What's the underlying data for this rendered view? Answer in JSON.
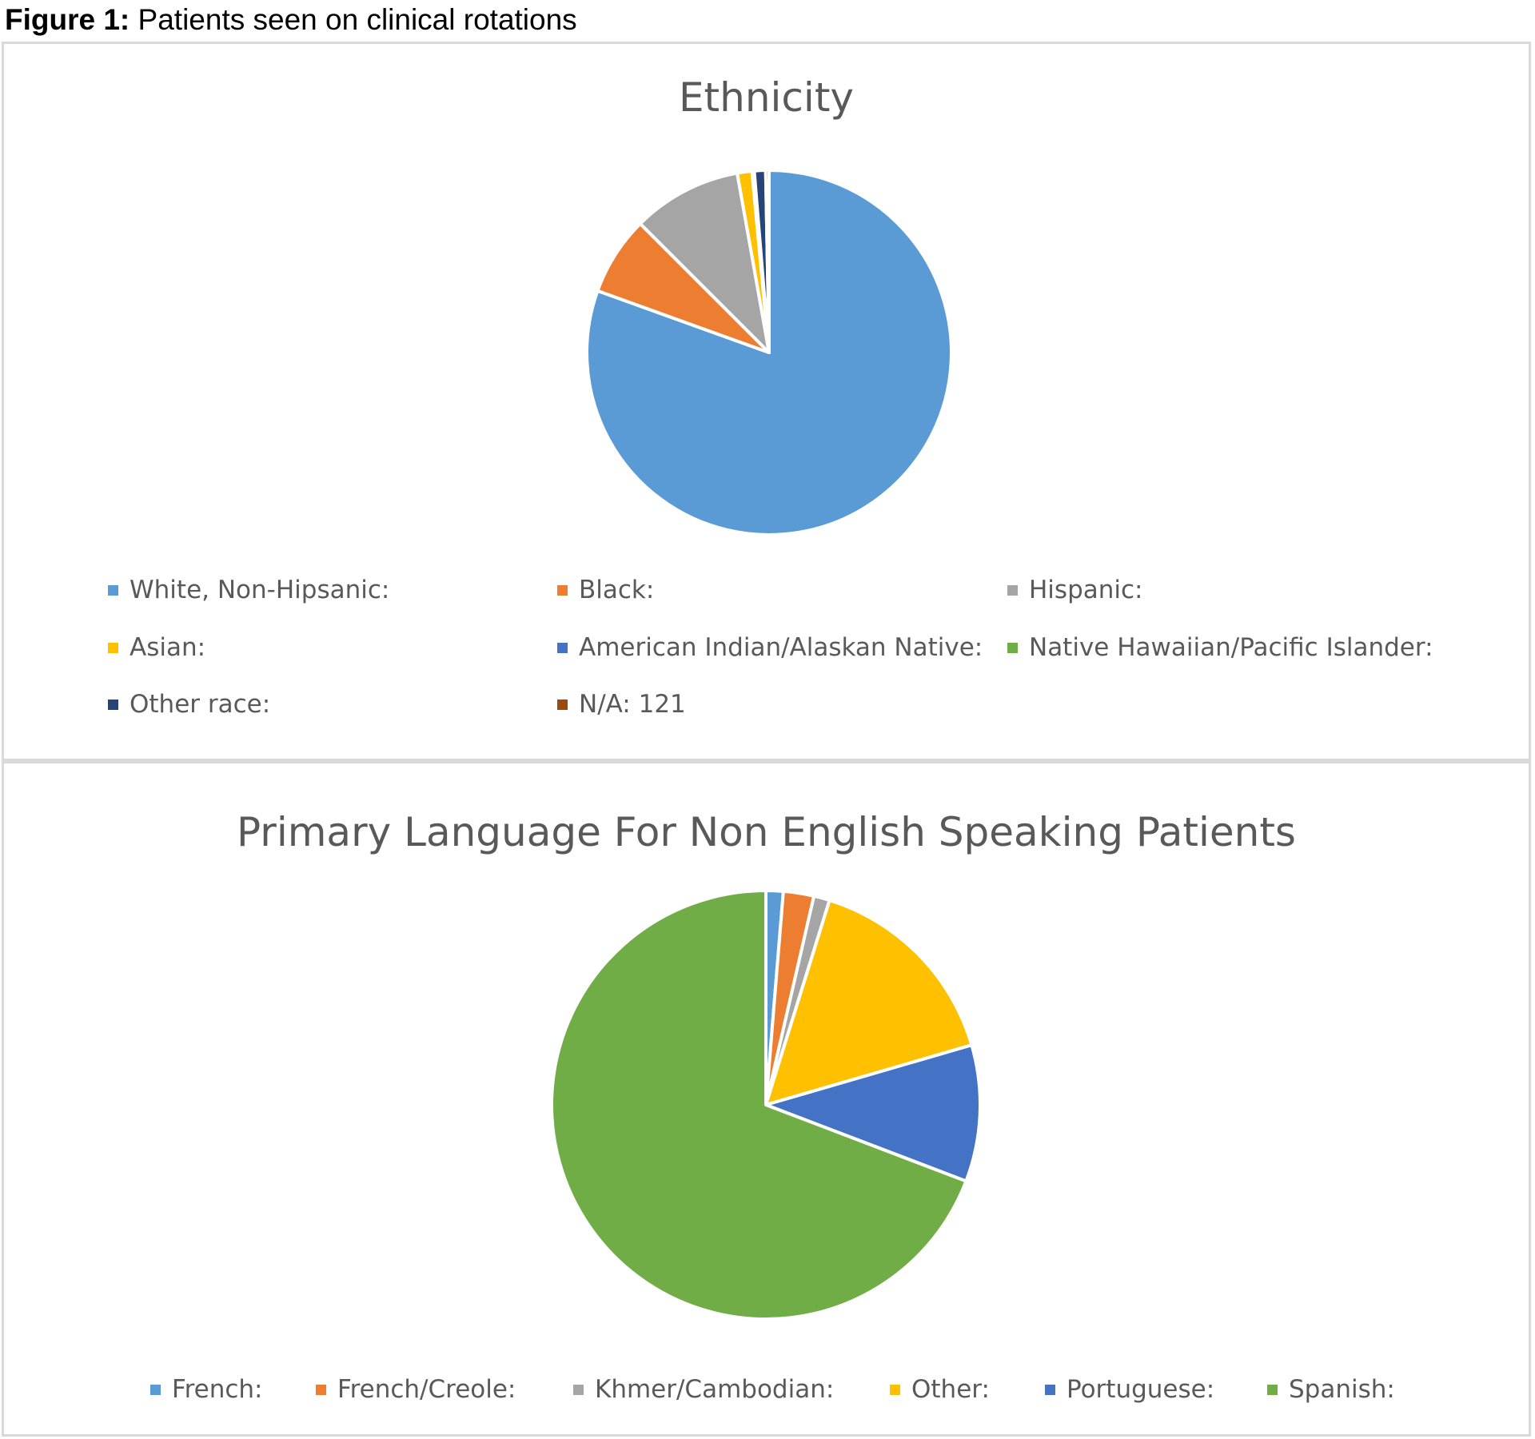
{
  "figure": {
    "caption_bold": "Figure 1:",
    "caption_text": " Patients seen on clinical rotations"
  },
  "chart_data": [
    {
      "type": "pie",
      "title": "Ethnicity",
      "categories": [
        "White, Non-Hipsanic:",
        "Black:",
        "Hispanic:",
        "Asian:",
        "American Indian/Alaskan Native:",
        "Native Hawaiian/Pacific Islander:",
        "Other race:",
        "N/A: 121"
      ],
      "values": [
        80.5,
        7.0,
        9.7,
        1.3,
        0.1,
        0.1,
        1.0,
        0.3
      ],
      "colors": [
        "#5B9BD5",
        "#ED7D31",
        "#A5A5A5",
        "#FFC000",
        "#4472C4",
        "#70AD47",
        "#264478",
        "#9E480E"
      ],
      "legend_position": "bottom"
    },
    {
      "type": "pie",
      "title": "Primary Language For Non English Speaking Patients",
      "categories": [
        "French:",
        "French/Creole:",
        "Khmer/Cambodian:",
        "Other:",
        "Portuguese:",
        "Spanish:"
      ],
      "values": [
        1.3,
        2.3,
        1.2,
        15.7,
        10.3,
        69.2
      ],
      "colors": [
        "#5B9BD5",
        "#ED7D31",
        "#A5A5A5",
        "#FFC000",
        "#4472C4",
        "#70AD47"
      ],
      "legend_position": "bottom"
    }
  ]
}
